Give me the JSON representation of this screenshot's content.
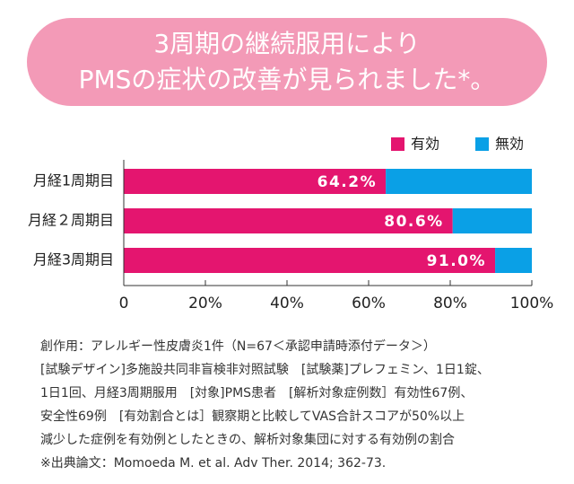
{
  "chart_data": {
    "type": "stacked-barh",
    "title": [
      "3周期の継続服用により",
      "PMSの症状の改善が見られました*。"
    ],
    "categories": [
      "月経1周期目",
      "月経２周期目",
      "月経3周期目"
    ],
    "series": [
      {
        "name": "有効",
        "color": "#e4156f",
        "values": [
          64.2,
          80.6,
          91.0
        ],
        "value_labels": [
          "64.2%",
          "80.6%",
          "91.0%"
        ]
      },
      {
        "name": "無効",
        "color": "#0aa0e6",
        "values": [
          35.8,
          19.4,
          9.0
        ]
      }
    ],
    "xlim": [
      0,
      100
    ],
    "xticks": [
      0,
      {
        "value": 20,
        "label": "20%"
      },
      {
        "value": 40,
        "label": "40%"
      },
      {
        "value": 60,
        "label": "60%"
      },
      {
        "value": 80,
        "label": "80%"
      },
      {
        "value": 100,
        "label": "100%"
      }
    ],
    "notes": [
      "創作用：アレルギー性皮膚炎1件（N=67＜承認申請時添付データ＞）",
      "[試験デザイン]多施設共同非盲検非対照試験　[試験薬]プレフェミン、1日1錠、",
      "1日1回、月経3周期服用　[対象]PMS患者　[解析対象症例数］有効性67例、",
      "安全性69例　[有効割合とは］観察期と比較してVAS合計スコアが50%以上",
      "減少した症例を有効例としたときの、解析対象集団に対する有効例の割合",
      "※出典論文：Momoeda M. et al. Adv Ther. 2014; 362-73."
    ]
  }
}
